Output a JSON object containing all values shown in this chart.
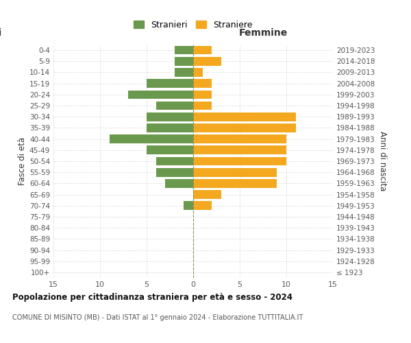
{
  "age_groups": [
    "100+",
    "95-99",
    "90-94",
    "85-89",
    "80-84",
    "75-79",
    "70-74",
    "65-69",
    "60-64",
    "55-59",
    "50-54",
    "45-49",
    "40-44",
    "35-39",
    "30-34",
    "25-29",
    "20-24",
    "15-19",
    "10-14",
    "5-9",
    "0-4"
  ],
  "birth_years": [
    "≤ 1923",
    "1924-1928",
    "1929-1933",
    "1934-1938",
    "1939-1943",
    "1944-1948",
    "1949-1953",
    "1954-1958",
    "1959-1963",
    "1964-1968",
    "1969-1973",
    "1974-1978",
    "1979-1983",
    "1984-1988",
    "1989-1993",
    "1994-1998",
    "1999-2003",
    "2004-2008",
    "2009-2013",
    "2014-2018",
    "2019-2023"
  ],
  "males": [
    0,
    0,
    0,
    0,
    0,
    0,
    1,
    0,
    3,
    4,
    4,
    5,
    9,
    5,
    5,
    4,
    7,
    5,
    2,
    2,
    2
  ],
  "females": [
    0,
    0,
    0,
    0,
    0,
    0,
    2,
    3,
    9,
    9,
    10,
    10,
    10,
    11,
    11,
    2,
    2,
    2,
    1,
    3,
    2
  ],
  "male_color": "#6a994e",
  "female_color": "#f4a820",
  "xlim": 15,
  "xlabel_right": "Femmine",
  "ylabel_left": "Fasce di età",
  "ylabel_right": "Anni di nascita",
  "legend_male": "Stranieri",
  "legend_female": "Straniere",
  "title": "Popolazione per cittadinanza straniera per età e sesso - 2024",
  "subtitle": "COMUNE DI MISINTO (MB) - Dati ISTAT al 1° gennaio 2024 - Elaborazione TUTTITALIA.IT",
  "background_color": "#ffffff",
  "grid_color": "#cccccc",
  "center_line_color": "#888855",
  "tick_color": "#555555"
}
